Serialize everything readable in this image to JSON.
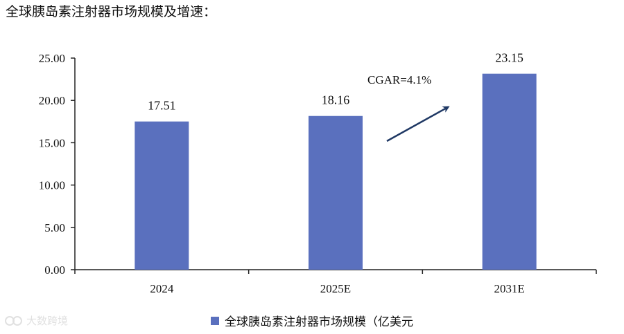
{
  "header": {
    "title": "全球胰岛素注射器市场规模及增速："
  },
  "colors": {
    "bar": "#5a70be",
    "axis": "#222222",
    "arrow": "#1f3864"
  },
  "watermark": {
    "text": "大数跨境",
    "icon": "brand-logo-icon"
  },
  "chart_data": {
    "type": "bar",
    "categories": [
      "2024",
      "2025E",
      "2031E"
    ],
    "series": [
      {
        "name": "全球胰岛素注射器市场规模（亿美元",
        "values": [
          17.51,
          18.16,
          23.15
        ],
        "labels": [
          "17.51",
          "18.16",
          "23.15"
        ]
      }
    ],
    "ylim": [
      0,
      25
    ],
    "yticks": [
      "0.00",
      "5.00",
      "10.00",
      "15.00",
      "20.00",
      "25.00"
    ],
    "ytick_values": [
      0,
      5,
      10,
      15,
      20,
      25
    ],
    "annotation": "CGAR=4.1%",
    "legend_position": "bottom",
    "grid": false
  }
}
